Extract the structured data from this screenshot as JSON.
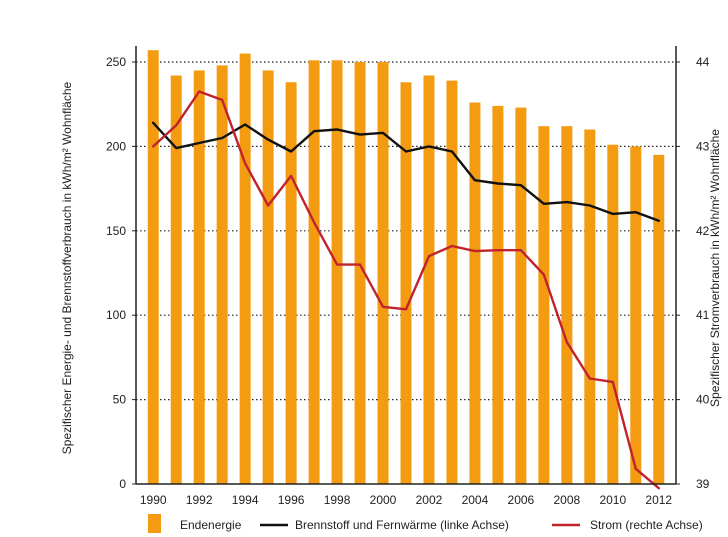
{
  "colors": {
    "bar": "#F39C12",
    "fuel_line": "#111111",
    "power_line": "#C0232C",
    "grid": "#222222",
    "axis": "#222222"
  },
  "chart_data": {
    "type": "bar",
    "title": "",
    "years": [
      1990,
      1991,
      1992,
      1993,
      1994,
      1995,
      1996,
      1997,
      1998,
      1999,
      2000,
      2001,
      2002,
      2003,
      2004,
      2005,
      2006,
      2007,
      2008,
      2009,
      2010,
      2011,
      2012
    ],
    "x_tick_labels": [
      "1990",
      "1992",
      "1994",
      "1996",
      "1998",
      "2000",
      "2002",
      "2004",
      "2006",
      "2008",
      "2010",
      "2012"
    ],
    "ylabel_left": "Spezifischer Energie- und Brennstoffverbrauch in kWh/m² Wohnfläche",
    "ylabel_right": "Spezifischer Stromverbrauch in kWh/m² Wohnfläche",
    "ylim_left": [
      0,
      250
    ],
    "yticks_left": [
      0,
      50,
      100,
      150,
      200,
      250
    ],
    "ylim_right": [
      39,
      44
    ],
    "yticks_right": [
      39,
      40,
      41,
      42,
      43,
      44
    ],
    "grid": "horizontal dotted",
    "legend_position": "bottom",
    "series": [
      {
        "name": "Endenergie",
        "kind": "bar",
        "axis": "left",
        "values": [
          257,
          242,
          245,
          248,
          255,
          245,
          238,
          251,
          251,
          250,
          250,
          238,
          242,
          239,
          226,
          224,
          223,
          212,
          212,
          210,
          201,
          200,
          195
        ]
      },
      {
        "name": "Brennstoff und Fernwärme (linke Achse)",
        "kind": "line",
        "axis": "left",
        "values": [
          214,
          199,
          202,
          205,
          213,
          204,
          197,
          209,
          210,
          207,
          208,
          197,
          200,
          197,
          180,
          178,
          177,
          166,
          167,
          165,
          160,
          161,
          156
        ]
      },
      {
        "name": "Strom (rechte Achse)",
        "kind": "line",
        "axis": "right",
        "values": [
          43.0,
          43.25,
          43.65,
          43.55,
          42.8,
          42.3,
          42.65,
          42.1,
          41.6,
          41.6,
          41.1,
          41.07,
          41.7,
          41.82,
          41.76,
          41.77,
          41.77,
          41.48,
          40.68,
          40.25,
          40.21,
          39.18,
          38.95
        ]
      }
    ]
  }
}
